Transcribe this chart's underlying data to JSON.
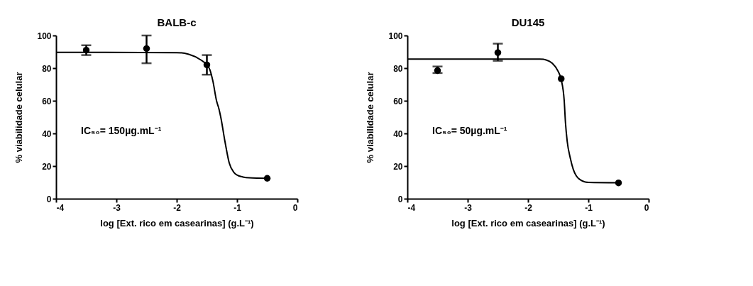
{
  "chart_data": [
    {
      "type": "scatter",
      "title": "BALB-c",
      "xlabel": "log [Ext. rico em casearinas] (g.L⁻¹)",
      "ylabel": "% viabilidade celular",
      "annotations": [
        "IC₅₀= 150µg.mL⁻¹"
      ],
      "xlim": [
        -4,
        0
      ],
      "xticks": [
        -4,
        -3,
        -2,
        -1,
        0
      ],
      "ylim": [
        0,
        100
      ],
      "yticks": [
        0,
        20,
        40,
        60,
        80,
        100
      ],
      "grid": false,
      "series": [
        {
          "color": "#000000",
          "marker": "circle",
          "x": [
            -3.5,
            -2.5,
            -1.5,
            -0.5
          ],
          "values": [
            91,
            92,
            82,
            12.5
          ],
          "errors": [
            [
              88,
              94
            ],
            [
              83,
              100
            ],
            [
              76,
              88
            ],
            null
          ]
        },
        {
          "type": "line",
          "color": "#000000",
          "x": [
            -4,
            -2,
            -1.8,
            -1.6,
            -1.5,
            -1.45,
            -1.4,
            -1.34,
            -1.3,
            -1.27,
            -1.2,
            -1.13,
            -1.05,
            -1.0,
            -0.9,
            -0.8,
            -0.5
          ],
          "values": [
            89.7,
            89.5,
            88.5,
            85,
            82,
            79,
            72,
            60,
            55,
            50,
            35,
            22,
            16,
            14.5,
            13.3,
            12.8,
            12.5
          ]
        }
      ]
    },
    {
      "type": "scatter",
      "title": "DU145",
      "xlabel": "log [Ext. rico em casearinas] (g.L⁻¹)",
      "ylabel": "% viabilidade celular",
      "annotations": [
        "IC₅₀= 50µg.mL⁻¹"
      ],
      "xlim": [
        -4,
        0
      ],
      "xticks": [
        -4,
        -3,
        -2,
        -1,
        0
      ],
      "ylim": [
        0,
        100
      ],
      "yticks": [
        0,
        20,
        40,
        60,
        80,
        100
      ],
      "grid": false,
      "series": [
        {
          "color": "#000000",
          "marker": "circle",
          "x": [
            -3.5,
            -2.5,
            -1.45,
            -0.5
          ],
          "values": [
            78.5,
            89.5,
            73.5,
            9.7
          ],
          "errors": [
            [
              77,
              81
            ],
            [
              84.5,
              95
            ],
            null,
            null
          ]
        },
        {
          "type": "line",
          "color": "#000000",
          "x": [
            -4,
            -1.8,
            -1.7,
            -1.6,
            -1.5,
            -1.45,
            -1.4,
            -1.38,
            -1.35,
            -1.3,
            -1.25,
            -1.2,
            -1.15,
            -1.0,
            -0.5
          ],
          "values": [
            85.5,
            85.5,
            85,
            83,
            78,
            73,
            60,
            47,
            35,
            25,
            18,
            14,
            12,
            10,
            9.8
          ]
        }
      ]
    }
  ]
}
